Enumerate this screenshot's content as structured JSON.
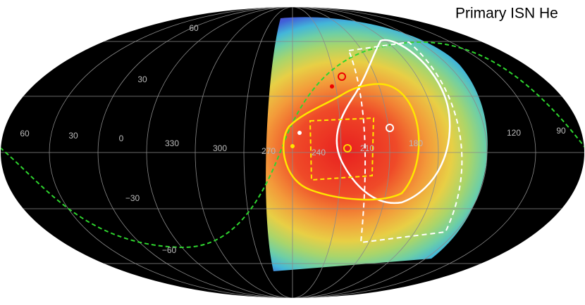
{
  "title": "Primary ISN He",
  "latitude_labels": [
    "60",
    "30",
    "−30",
    "−60"
  ],
  "longitude_labels": [
    "60",
    "30",
    "0",
    "330",
    "300",
    "270",
    "240",
    "210",
    "180",
    "120",
    "90"
  ]
}
